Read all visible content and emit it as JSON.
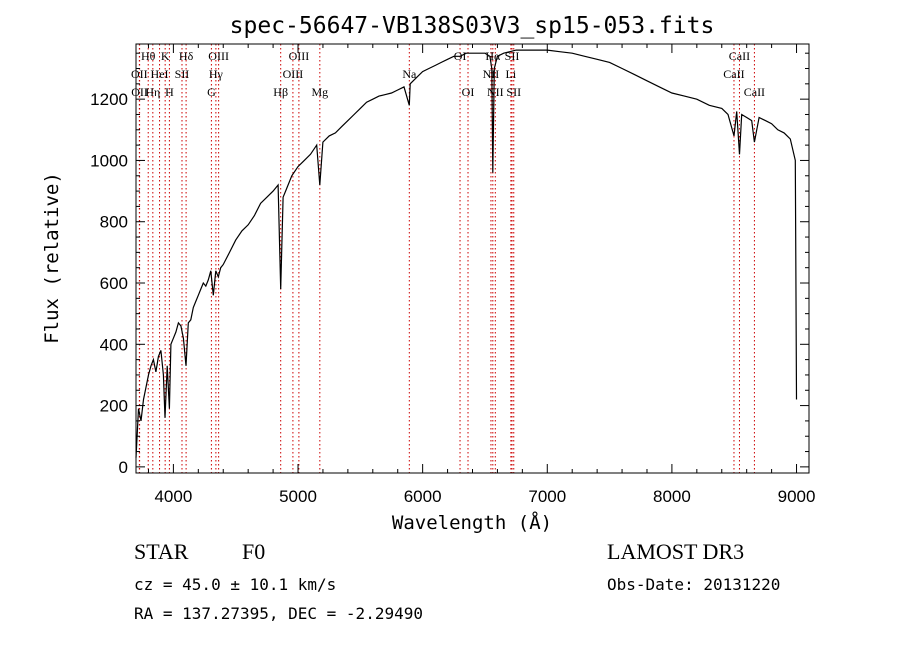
{
  "chart_data": {
    "type": "line",
    "title": "spec-56647-VB138S03V3_sp15-053.fits",
    "xlabel": "Wavelength (Å)",
    "ylabel": "Flux (relative)",
    "xlim": [
      3700,
      9100
    ],
    "ylim": [
      -20,
      1380
    ],
    "xticks": [
      4000,
      5000,
      6000,
      7000,
      8000,
      9000
    ],
    "yticks": [
      0,
      200,
      400,
      600,
      800,
      1000,
      1200
    ],
    "line_color": "#000000",
    "marker_color": "#cc0000",
    "spectrum": {
      "x": [
        3700,
        3720,
        3740,
        3760,
        3780,
        3800,
        3820,
        3840,
        3860,
        3880,
        3900,
        3920,
        3933,
        3950,
        3968,
        3980,
        4000,
        4020,
        4040,
        4060,
        4080,
        4101,
        4120,
        4140,
        4160,
        4180,
        4200,
        4220,
        4240,
        4260,
        4280,
        4300,
        4320,
        4340,
        4360,
        4380,
        4400,
        4450,
        4500,
        4550,
        4600,
        4650,
        4700,
        4750,
        4800,
        4840,
        4861,
        4880,
        4900,
        4950,
        5000,
        5050,
        5100,
        5150,
        5175,
        5200,
        5250,
        5300,
        5350,
        5400,
        5450,
        5500,
        5550,
        5600,
        5650,
        5700,
        5750,
        5800,
        5850,
        5893,
        5900,
        5950,
        6000,
        6050,
        6100,
        6150,
        6200,
        6250,
        6300,
        6350,
        6400,
        6450,
        6500,
        6540,
        6555,
        6563,
        6575,
        6600,
        6650,
        6700,
        6750,
        6800,
        6900,
        7000,
        7100,
        7200,
        7300,
        7400,
        7500,
        7600,
        7700,
        7800,
        7900,
        8000,
        8100,
        8200,
        8300,
        8400,
        8450,
        8498,
        8520,
        8542,
        8560,
        8600,
        8640,
        8662,
        8700,
        8750,
        8800,
        8850,
        8900,
        8950,
        8990,
        8995,
        9000
      ],
      "y": [
        30,
        190,
        150,
        220,
        260,
        300,
        330,
        350,
        310,
        360,
        380,
        300,
        160,
        330,
        190,
        400,
        420,
        440,
        470,
        460,
        420,
        330,
        470,
        480,
        520,
        540,
        560,
        580,
        600,
        590,
        610,
        640,
        560,
        640,
        620,
        650,
        660,
        700,
        740,
        770,
        790,
        820,
        860,
        880,
        900,
        920,
        580,
        880,
        900,
        950,
        980,
        1000,
        1020,
        1050,
        920,
        1060,
        1080,
        1090,
        1110,
        1130,
        1150,
        1170,
        1190,
        1200,
        1210,
        1215,
        1220,
        1230,
        1240,
        1180,
        1250,
        1270,
        1290,
        1300,
        1310,
        1320,
        1330,
        1340,
        1340,
        1350,
        1350,
        1350,
        1350,
        1340,
        1300,
        960,
        1300,
        1340,
        1350,
        1355,
        1360,
        1360,
        1360,
        1360,
        1355,
        1350,
        1340,
        1330,
        1320,
        1300,
        1280,
        1260,
        1240,
        1220,
        1210,
        1200,
        1180,
        1170,
        1150,
        1080,
        1160,
        1020,
        1150,
        1140,
        1130,
        1060,
        1140,
        1130,
        1120,
        1100,
        1090,
        1070,
        1000,
        620,
        220
      ]
    },
    "lines": [
      {
        "label": "Hθ",
        "x": 3798,
        "row": 0
      },
      {
        "label": "OII",
        "x": 3727,
        "row": 1
      },
      {
        "label": "OII",
        "x": 3729,
        "row": 2
      },
      {
        "label": "Hη",
        "x": 3835,
        "row": 2
      },
      {
        "label": "HeI",
        "x": 3889,
        "row": 1
      },
      {
        "label": "K",
        "x": 3934,
        "row": 0
      },
      {
        "label": "SII",
        "x": 4069,
        "row": 1
      },
      {
        "label": "H",
        "x": 3968,
        "row": 2
      },
      {
        "label": "Hδ",
        "x": 4102,
        "row": 0
      },
      {
        "label": "OIII",
        "x": 4363,
        "row": 0
      },
      {
        "label": "Hγ",
        "x": 4341,
        "row": 1
      },
      {
        "label": "G",
        "x": 4305,
        "row": 2
      },
      {
        "label": "Hβ",
        "x": 4861,
        "row": 2
      },
      {
        "label": "OIII",
        "x": 5007,
        "row": 0
      },
      {
        "label": "OIII",
        "x": 4959,
        "row": 1
      },
      {
        "label": "Mg",
        "x": 5175,
        "row": 2
      },
      {
        "label": "Na",
        "x": 5893,
        "row": 1
      },
      {
        "label": "OI",
        "x": 6300,
        "row": 0
      },
      {
        "label": "OI",
        "x": 6364,
        "row": 2
      },
      {
        "label": "Hα",
        "x": 6563,
        "row": 0
      },
      {
        "label": "SII",
        "x": 6717,
        "row": 0
      },
      {
        "label": "NII",
        "x": 6548,
        "row": 1
      },
      {
        "label": "Li",
        "x": 6708,
        "row": 1
      },
      {
        "label": "NII",
        "x": 6583,
        "row": 2
      },
      {
        "label": "SII",
        "x": 6731,
        "row": 2
      },
      {
        "label": "CaII",
        "x": 8542,
        "row": 0
      },
      {
        "label": "CaII",
        "x": 8498,
        "row": 1
      },
      {
        "label": "CaII",
        "x": 8662,
        "row": 2
      }
    ]
  },
  "info": {
    "object_type": "STAR",
    "subclass": "F0",
    "cz": "cz = 45.0 ± 10.1 km/s",
    "coords": "RA = 137.27395, DEC =  -2.29490",
    "survey": "LAMOST DR3",
    "obs_date": "Obs-Date: 20131220"
  }
}
